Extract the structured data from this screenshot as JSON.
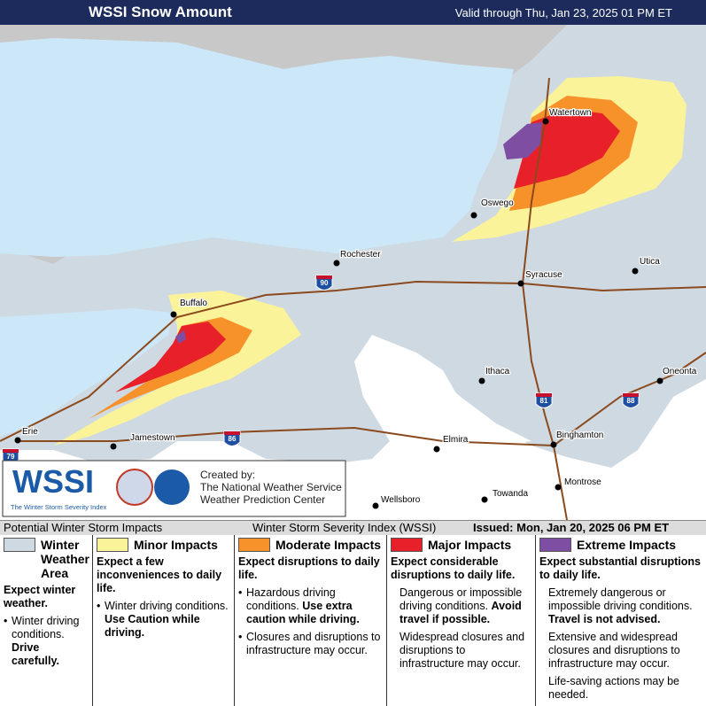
{
  "header": {
    "title": "WSSI Snow Amount",
    "valid": "Valid through Thu, Jan 23, 2025 01 PM ET"
  },
  "map": {
    "cities": [
      "Watertown",
      "Oswego",
      "Rochester",
      "Syracuse",
      "Utica",
      "Buffalo",
      "Ithaca",
      "Oneonta",
      "Elmira",
      "Binghamton",
      "Jamestown",
      "Erie",
      "Wellsboro",
      "Towanda",
      "Montrose"
    ],
    "highways": [
      "90",
      "81",
      "88",
      "86",
      "79"
    ]
  },
  "logo": {
    "name": "WSSI",
    "tagline": "The Winter Storm Severity Index",
    "created_by": "Created by:",
    "org1": "The National Weather Service",
    "org2": "Weather Prediction Center"
  },
  "legend": {
    "title": "Potential Winter Storm Impacts",
    "index": "Winter Storm Severity Index (WSSI)",
    "issued": "Issued: Mon, Jan 20, 2025 06 PM ET",
    "columns": [
      {
        "title": "Winter Weather Area",
        "color": "#cfd9e1",
        "summary": "Expect winter weather.",
        "bullets": true,
        "items": [
          {
            "normal": "Winter driving conditions.",
            "bold": "Drive carefully."
          }
        ]
      },
      {
        "title": "Minor Impacts",
        "color": "#fbf39a",
        "summary": "Expect a few inconveniences to daily life.",
        "bullets": true,
        "items": [
          {
            "normal": "Winter driving conditions.",
            "bold": "Use Caution while driving."
          }
        ]
      },
      {
        "title": "Moderate Impacts",
        "color": "#f7922b",
        "summary": "Expect disruptions to daily life.",
        "bullets": true,
        "items": [
          {
            "normal": "Hazardous driving conditions.",
            "bold": "Use extra caution while driving."
          },
          {
            "normal": "Closures and disruptions to infrastructure may occur."
          }
        ]
      },
      {
        "title": "Major Impacts",
        "color": "#e8202a",
        "summary": "Expect considerable disruptions to daily life.",
        "bullets": false,
        "items": [
          {
            "normal": "Dangerous or impossible driving conditions.",
            "bold": "Avoid travel if possible."
          },
          {
            "normal": "Widespread closures and disruptions to infrastructure may occur."
          }
        ]
      },
      {
        "title": "Extreme Impacts",
        "color": "#7e4ea3",
        "summary": "Expect substantial disruptions to daily life.",
        "bullets": false,
        "items": [
          {
            "normal": "Extremely dangerous or impossible driving conditions.",
            "bold": "Travel is not advised."
          },
          {
            "normal": "Extensive and widespread closures and disruptions to infrastructure may occur."
          },
          {
            "normal": "Life-saving actions may be needed."
          }
        ]
      }
    ]
  }
}
